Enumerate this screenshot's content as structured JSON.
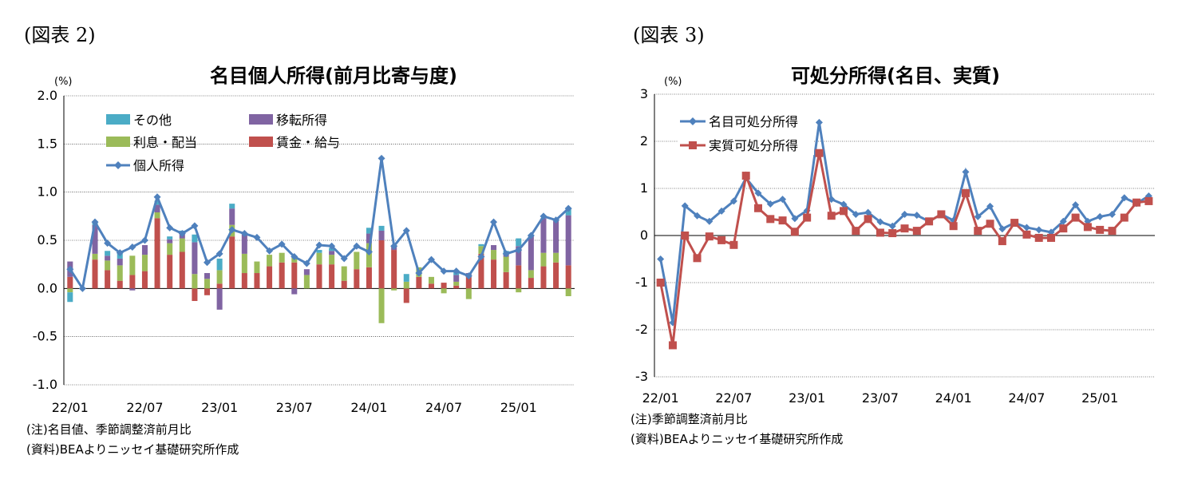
{
  "left": {
    "fig_label": "(図表 2)",
    "chart_data": {
      "type": "bar",
      "title": "名目個人所得(前月比寄与度)",
      "unit": "(%)",
      "ylim": [
        -1.0,
        2.0
      ],
      "yticks": [
        "2.0",
        "1.5",
        "1.0",
        "0.5",
        "0.0",
        "-0.5",
        "-1.0"
      ],
      "ytick_values": [
        2.0,
        1.5,
        1.0,
        0.5,
        0.0,
        -0.5,
        -1.0
      ],
      "xtick_labels": [
        "22/01",
        "22/07",
        "23/01",
        "23/07",
        "24/01",
        "24/07",
        "25/01"
      ],
      "xtick_index": [
        0,
        6,
        12,
        18,
        24,
        30,
        36
      ],
      "n_months": 41,
      "grid": true,
      "legend_position": "top-left",
      "series": [
        {
          "name": "その他",
          "color": "#4BACC6",
          "values": [
            -0.1,
            0.0,
            0.02,
            0.05,
            0.05,
            0.0,
            0.0,
            0.04,
            0.03,
            0.02,
            0.08,
            0.0,
            0.12,
            0.05,
            0.0,
            0.0,
            0.0,
            0.0,
            0.0,
            0.0,
            0.03,
            0.03,
            0.0,
            0.0,
            0.06,
            0.05,
            0.0,
            0.08,
            0.0,
            0.0,
            0.0,
            0.05,
            0.0,
            0.02,
            0.0,
            0.04,
            0.08,
            0.0,
            0.0,
            0.0,
            0.08
          ]
        },
        {
          "name": "移転所得",
          "color": "#8064A2",
          "values": [
            0.16,
            0.0,
            0.3,
            0.05,
            0.07,
            -0.02,
            0.1,
            0.08,
            0.04,
            0.06,
            0.33,
            0.06,
            -0.22,
            0.17,
            0.2,
            0.0,
            0.0,
            0.0,
            -0.06,
            0.06,
            0.0,
            0.04,
            0.0,
            0.0,
            0.1,
            0.1,
            0.05,
            0.0,
            0.0,
            0.0,
            0.0,
            0.07,
            0.02,
            0.0,
            0.05,
            0.02,
            0.2,
            0.36,
            0.36,
            0.33,
            0.52
          ]
        },
        {
          "name": "利息・配当",
          "color": "#9BBB59",
          "values": [
            -0.04,
            0.0,
            0.06,
            0.1,
            0.16,
            0.2,
            0.17,
            0.06,
            0.12,
            0.14,
            0.15,
            0.1,
            0.14,
            0.12,
            0.2,
            0.12,
            0.12,
            0.1,
            0.05,
            0.14,
            0.12,
            0.1,
            0.15,
            0.18,
            0.25,
            -0.36,
            -0.02,
            0.07,
            0.1,
            0.07,
            -0.05,
            0.04,
            -0.11,
            0.08,
            0.1,
            0.16,
            -0.04,
            0.08,
            0.14,
            0.1,
            -0.08
          ]
        },
        {
          "name": "賃金・給与",
          "color": "#C0504D",
          "values": [
            0.12,
            0.0,
            0.3,
            0.19,
            0.08,
            0.14,
            0.18,
            0.73,
            0.35,
            0.38,
            -0.13,
            -0.07,
            0.05,
            0.54,
            0.16,
            0.16,
            0.23,
            0.27,
            0.27,
            0.0,
            0.25,
            0.25,
            0.08,
            0.2,
            0.22,
            0.5,
            0.4,
            -0.15,
            0.12,
            0.05,
            0.06,
            0.03,
            0.14,
            0.36,
            0.3,
            0.17,
            0.24,
            0.11,
            0.23,
            0.27,
            0.24
          ]
        },
        {
          "name": "個人所得",
          "color": "#4F81BD",
          "kind": "line",
          "values": [
            0.2,
            0.0,
            0.69,
            0.47,
            0.37,
            0.43,
            0.5,
            0.95,
            0.63,
            0.57,
            0.65,
            0.27,
            0.36,
            0.61,
            0.57,
            0.53,
            0.39,
            0.46,
            0.33,
            0.26,
            0.45,
            0.44,
            0.31,
            0.44,
            0.38,
            1.35,
            0.44,
            0.6,
            0.16,
            0.3,
            0.18,
            0.18,
            0.13,
            0.33,
            0.69,
            0.36,
            0.4,
            0.55,
            0.75,
            0.71,
            0.83
          ]
        }
      ]
    },
    "notes": [
      "(注)名目値、季節調整済前月比",
      "(資料)BEAよりニッセイ基礎研究所作成"
    ]
  },
  "right": {
    "fig_label": "(図表 3)",
    "chart_data": {
      "type": "line",
      "title": "可処分所得(名目、実質)",
      "unit": "(%)",
      "ylim": [
        -3,
        3
      ],
      "yticks": [
        "3",
        "2",
        "1",
        "0",
        "-1",
        "-2",
        "-3"
      ],
      "ytick_values": [
        3,
        2,
        1,
        0,
        -1,
        -2,
        -3
      ],
      "xtick_labels": [
        "22/01",
        "22/07",
        "23/01",
        "23/07",
        "24/01",
        "24/07",
        "25/01"
      ],
      "xtick_index": [
        0,
        6,
        12,
        18,
        24,
        30,
        36
      ],
      "n_months": 41,
      "grid": true,
      "legend_position": "top-left",
      "series": [
        {
          "name": "名目可処分所得",
          "color": "#4F81BD",
          "marker": "diamond",
          "values": [
            -0.5,
            -1.85,
            0.63,
            0.42,
            0.3,
            0.52,
            0.73,
            1.22,
            0.9,
            0.67,
            0.77,
            0.36,
            0.53,
            2.4,
            0.77,
            0.66,
            0.45,
            0.49,
            0.29,
            0.2,
            0.45,
            0.43,
            0.3,
            0.45,
            0.32,
            1.35,
            0.4,
            0.62,
            0.14,
            0.27,
            0.17,
            0.12,
            0.07,
            0.3,
            0.65,
            0.3,
            0.4,
            0.45,
            0.8,
            0.68,
            0.84
          ]
        },
        {
          "name": "実質可処分所得",
          "color": "#C0504D",
          "marker": "square",
          "values": [
            -1.0,
            -2.33,
            0.0,
            -0.48,
            -0.02,
            -0.1,
            -0.2,
            1.27,
            0.58,
            0.35,
            0.32,
            0.08,
            0.38,
            1.75,
            0.42,
            0.52,
            0.1,
            0.35,
            0.06,
            0.05,
            0.15,
            0.1,
            0.3,
            0.45,
            0.2,
            0.9,
            0.1,
            0.25,
            -0.12,
            0.27,
            0.02,
            -0.05,
            -0.05,
            0.15,
            0.38,
            0.18,
            0.12,
            0.1,
            0.38,
            0.7,
            0.73
          ]
        }
      ]
    },
    "notes": [
      "(注)季節調整済前月比",
      "(資料)BEAよりニッセイ基礎研究所作成"
    ]
  }
}
